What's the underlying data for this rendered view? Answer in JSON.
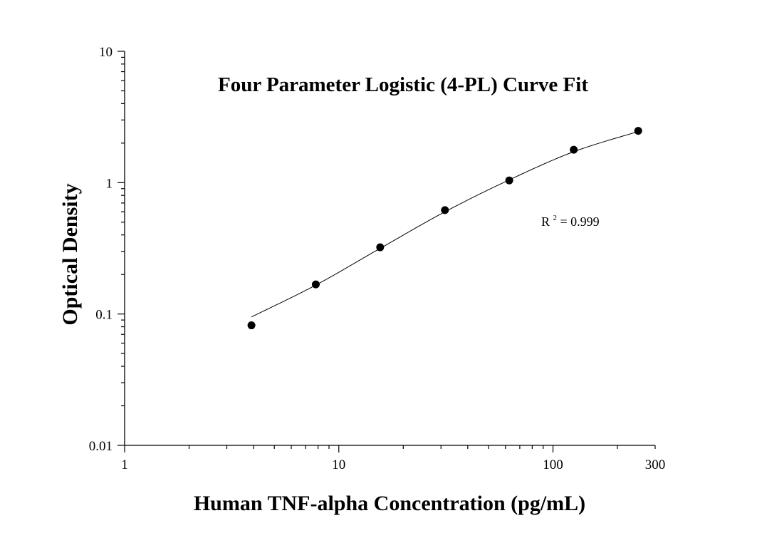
{
  "chart_data": {
    "type": "scatter",
    "title": "Four Parameter Logistic (4-PL) Curve Fit",
    "xlabel": "Human TNF-alpha Concentration (pg/mL)",
    "ylabel": "Optical Density",
    "xscale": "log",
    "yscale": "log",
    "xlim": [
      1,
      300
    ],
    "ylim": [
      0.01,
      10
    ],
    "x_tick_labels": [
      "1",
      "10",
      "100",
      "300"
    ],
    "x_tick_values": [
      1,
      10,
      100,
      300
    ],
    "y_tick_labels": [
      "0.01",
      "0.1",
      "1",
      "10"
    ],
    "y_tick_values": [
      0.01,
      0.1,
      1,
      10
    ],
    "grid": false,
    "legend": "none",
    "series": [
      {
        "points": [
          {
            "x": 3.91,
            "y": 0.082
          },
          {
            "x": 7.81,
            "y": 0.168
          },
          {
            "x": 15.6,
            "y": 0.322
          },
          {
            "x": 31.3,
            "y": 0.618
          },
          {
            "x": 62.5,
            "y": 1.04
          },
          {
            "x": 125,
            "y": 1.78
          },
          {
            "x": 250,
            "y": 2.48
          }
        ]
      }
    ],
    "fit_curve": {
      "model": "4PL",
      "points": [
        {
          "x": 3.91,
          "y": 0.095
        },
        {
          "x": 7.81,
          "y": 0.166
        },
        {
          "x": 15.6,
          "y": 0.316
        },
        {
          "x": 31.3,
          "y": 0.6
        },
        {
          "x": 62.5,
          "y": 1.05
        },
        {
          "x": 125,
          "y": 1.72
        },
        {
          "x": 250,
          "y": 2.45
        }
      ]
    },
    "annotation": {
      "label_base": "R",
      "label_sup": "2",
      "text": "= 0.999"
    },
    "colors": {
      "marker": "#000000",
      "line": "#000000",
      "axis": "#000000"
    }
  }
}
